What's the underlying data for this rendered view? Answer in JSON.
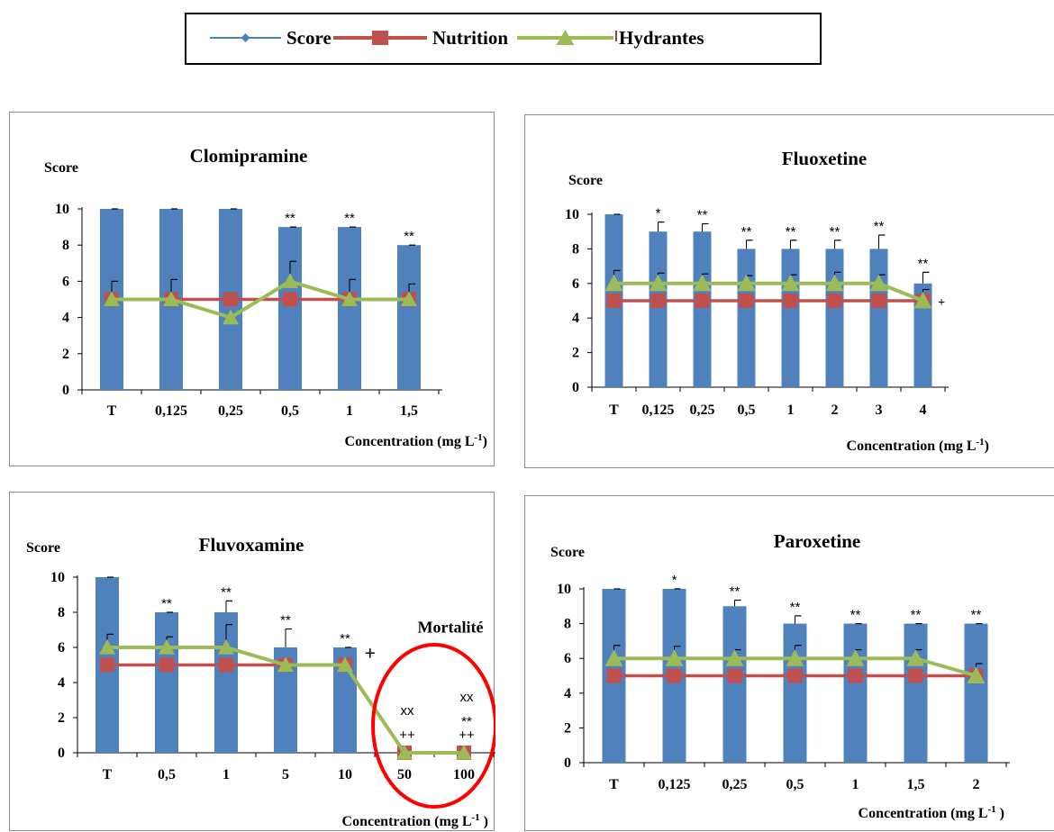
{
  "legend": {
    "items": [
      {
        "name": "Score",
        "color": "#4f81bd",
        "marker": "diamond"
      },
      {
        "name": "Nutrition",
        "color": "#c0504d",
        "marker": "square"
      },
      {
        "name": "Hydrantes",
        "color": "#9bbb59",
        "marker": "triangle"
      }
    ]
  },
  "colors": {
    "score": "#4f81bd",
    "nutrition": "#c0504d",
    "hydrantes": "#9bbb59",
    "mortality_ring": "#ff0000"
  },
  "chart_data": [
    {
      "type": "bar",
      "title": "Clomipramine",
      "ylabel": "Score",
      "xlabel": "Concentration (mg L",
      "xlabel_sup": "-1",
      "xlabel_end": ")",
      "ylim": [
        0,
        10
      ],
      "yticks": [
        0,
        2,
        4,
        6,
        8,
        10
      ],
      "categories": [
        "T",
        "0,125",
        "0,25",
        "0,5",
        "1",
        "1,5"
      ],
      "series": [
        {
          "name": "Score",
          "type": "bar",
          "values": [
            10,
            10,
            10,
            9,
            9,
            8
          ],
          "error": [
            0,
            0,
            0,
            0,
            0,
            0
          ]
        },
        {
          "name": "Nutrition",
          "type": "line",
          "values": [
            5,
            5,
            5,
            5,
            5,
            5
          ]
        },
        {
          "name": "Hydrantes",
          "type": "line",
          "values": [
            5,
            5,
            4,
            6,
            5,
            5
          ],
          "error": [
            1,
            1.1,
            0,
            1.1,
            1.1,
            0.85
          ]
        }
      ],
      "annotations": [
        "",
        "",
        "",
        "**",
        "**",
        "**"
      ]
    },
    {
      "type": "bar",
      "title": "Fluoxetine",
      "ylabel": "Score",
      "xlabel": "Concentration (mg L",
      "xlabel_sup": "-1",
      "xlabel_end": ")",
      "ylim": [
        0,
        10
      ],
      "yticks": [
        0,
        2,
        4,
        6,
        8,
        10
      ],
      "categories": [
        "T",
        "0,125",
        "0,25",
        "0,5",
        "1",
        "2",
        "3",
        "4"
      ],
      "series": [
        {
          "name": "Score",
          "type": "bar",
          "values": [
            10,
            9,
            9,
            8,
            8,
            8,
            8,
            6
          ],
          "error": [
            0,
            0.55,
            0.45,
            0.5,
            0.5,
            0.5,
            0.8,
            0.65
          ]
        },
        {
          "name": "Nutrition",
          "type": "line",
          "values": [
            5,
            5,
            5,
            5,
            5,
            5,
            5,
            5
          ]
        },
        {
          "name": "Hydrantes",
          "type": "line",
          "values": [
            6,
            6,
            6,
            6,
            6,
            6,
            6,
            5
          ],
          "error": [
            0.75,
            0.6,
            0.55,
            0.45,
            0.5,
            0.65,
            0.5,
            0.65
          ]
        }
      ],
      "annotations": [
        "",
        "*",
        "**",
        "**",
        "**",
        "**",
        "**",
        "**"
      ],
      "side_marks": [
        {
          "after_category": 7,
          "text": "+"
        }
      ]
    },
    {
      "type": "bar",
      "title": "Fluvoxamine",
      "ylabel": "Score",
      "xlabel": "Concentration (mg L",
      "xlabel_sup": "-1",
      "xlabel_end": " )",
      "ylim": [
        0,
        10
      ],
      "yticks": [
        0,
        2,
        4,
        6,
        8,
        10
      ],
      "categories": [
        "T",
        "0,5",
        "1",
        "5",
        "10",
        "50",
        "100"
      ],
      "series": [
        {
          "name": "Score",
          "type": "bar",
          "values": [
            10,
            8,
            8,
            6,
            6,
            0,
            0
          ],
          "error": [
            0,
            0,
            0.65,
            1.05,
            0,
            0,
            0
          ]
        },
        {
          "name": "Nutrition",
          "type": "line",
          "values": [
            5,
            5,
            5,
            5,
            5,
            0,
            0
          ]
        },
        {
          "name": "Hydrantes",
          "type": "line",
          "values": [
            6,
            6,
            6,
            5,
            5,
            0,
            0
          ],
          "error": [
            0.75,
            0.6,
            1.3,
            0.2,
            0.15,
            0,
            0
          ]
        }
      ],
      "annotations": [
        "",
        "**",
        "**",
        "**",
        "**",
        "",
        ""
      ],
      "side_marks": [
        {
          "after_category": 4,
          "text": "+"
        }
      ],
      "mortality": {
        "label": "Mortalité",
        "marks": [
          {
            "category": 5,
            "lines": [
              "xx",
              "++"
            ]
          },
          {
            "category": 6,
            "lines": [
              "xx",
              "**",
              "++"
            ]
          }
        ]
      }
    },
    {
      "type": "bar",
      "title": "Paroxetine",
      "ylabel": "Score",
      "xlabel": "Concentration (mg L",
      "xlabel_sup": "-1",
      "xlabel_end": " )",
      "ylim": [
        0,
        10
      ],
      "yticks": [
        0,
        2,
        4,
        6,
        8,
        10
      ],
      "categories": [
        "T",
        "0,125",
        "0,25",
        "0,5",
        "1",
        "1,5",
        "2"
      ],
      "series": [
        {
          "name": "Score",
          "type": "bar",
          "values": [
            10,
            10,
            9,
            8,
            8,
            8,
            8
          ],
          "error": [
            0,
            0,
            0.35,
            0.45,
            0,
            0,
            0
          ]
        },
        {
          "name": "Nutrition",
          "type": "line",
          "values": [
            5,
            5,
            5,
            5,
            5,
            5,
            5
          ]
        },
        {
          "name": "Hydrantes",
          "type": "line",
          "values": [
            6,
            6,
            6,
            6,
            6,
            6,
            5
          ],
          "error": [
            0.75,
            0.7,
            0.5,
            0.75,
            0.5,
            0.5,
            0.7
          ]
        }
      ],
      "annotations": [
        "",
        "*",
        "**",
        "**",
        "**",
        "**",
        "**"
      ]
    }
  ]
}
